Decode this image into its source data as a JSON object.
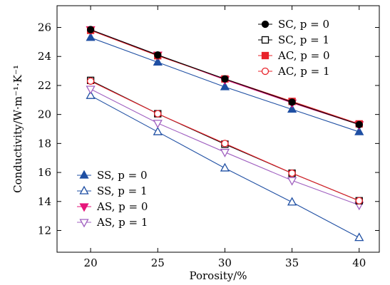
{
  "chart_data": {
    "type": "line",
    "xlabel": "Porosity/%",
    "ylabel": "Conductivity/W·m⁻¹·K⁻¹",
    "x": [
      20,
      25,
      30,
      35,
      40
    ],
    "xlim": [
      17.5,
      41.5
    ],
    "ylim": [
      10.5,
      27.5
    ],
    "xticks": [
      "20",
      "25",
      "30",
      "35",
      "40"
    ],
    "yticks": [
      "12",
      "14",
      "16",
      "18",
      "20",
      "22",
      "24",
      "26"
    ],
    "grid": false,
    "legends": [
      {
        "placement": "top-right",
        "series": [
          0,
          1,
          2,
          3
        ]
      },
      {
        "placement": "bottom-left",
        "series": [
          4,
          5,
          6,
          7
        ]
      }
    ],
    "series": [
      {
        "name": "SC, p = 0",
        "values": [
          25.85,
          24.1,
          22.45,
          20.85,
          19.3
        ],
        "color": "#000000",
        "marker": "circle",
        "filled": true
      },
      {
        "name": "SC, p = 1",
        "values": [
          22.35,
          20.05,
          17.95,
          15.95,
          14.05
        ],
        "color": "#000000",
        "marker": "square",
        "filled": false
      },
      {
        "name": "AC, p = 0",
        "values": [
          25.8,
          24.05,
          22.45,
          20.9,
          19.35
        ],
        "color": "#e8222a",
        "marker": "square",
        "filled": true
      },
      {
        "name": "AC, p = 1",
        "values": [
          22.3,
          20.05,
          18.0,
          15.95,
          14.05
        ],
        "color": "#e8222a",
        "marker": "circle",
        "filled": false
      },
      {
        "name": "SS, p = 0",
        "values": [
          25.3,
          23.6,
          21.9,
          20.35,
          18.8
        ],
        "color": "#1f4fa3",
        "marker": "triangle-up",
        "filled": true
      },
      {
        "name": "SS, p = 1",
        "values": [
          21.3,
          18.8,
          16.3,
          13.95,
          11.5
        ],
        "color": "#1f4fa3",
        "marker": "triangle-up",
        "filled": false
      },
      {
        "name": "AS, p = 0",
        "values": [
          25.85,
          24.1,
          22.4,
          20.8,
          19.3
        ],
        "color": "#e6157a",
        "marker": "triangle-down",
        "filled": true
      },
      {
        "name": "AS, p = 1",
        "values": [
          21.75,
          19.4,
          17.4,
          15.45,
          13.75
        ],
        "color": "#a060c0",
        "marker": "triangle-down",
        "filled": false
      }
    ]
  }
}
